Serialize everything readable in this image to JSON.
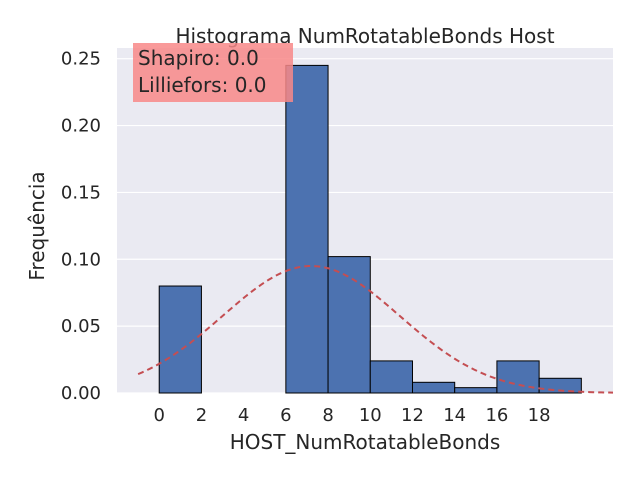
{
  "chart_data": {
    "type": "histogram",
    "title": "Histograma NumRotatableBonds Host",
    "xlabel": "HOST_NumRotatableBonds",
    "ylabel": "Frequência",
    "xlim": [
      -2,
      21.5
    ],
    "ylim": [
      0,
      0.258
    ],
    "xticks": [
      0,
      2,
      4,
      6,
      8,
      10,
      12,
      14,
      16,
      18
    ],
    "yticks": [
      0.0,
      0.05,
      0.1,
      0.15,
      0.2,
      0.25
    ],
    "ytick_labels": [
      "0.00",
      "0.05",
      "0.10",
      "0.15",
      "0.20",
      "0.25"
    ],
    "grid": true,
    "bars": [
      {
        "x0": 0,
        "x1": 2,
        "value": 0.08
      },
      {
        "x0": 2,
        "x1": 4,
        "value": 0.0
      },
      {
        "x0": 4,
        "x1": 6,
        "value": 0.0
      },
      {
        "x0": 6,
        "x1": 8,
        "value": 0.245
      },
      {
        "x0": 8,
        "x1": 10,
        "value": 0.102
      },
      {
        "x0": 10,
        "x1": 12,
        "value": 0.024
      },
      {
        "x0": 12,
        "x1": 14,
        "value": 0.008
      },
      {
        "x0": 14,
        "x1": 16,
        "value": 0.004
      },
      {
        "x0": 16,
        "x1": 18,
        "value": 0.024
      },
      {
        "x0": 18,
        "x1": 20,
        "value": 0.011
      }
    ],
    "normal_fit": {
      "mean": 7.2,
      "std": 4.2,
      "x_range": [
        -1,
        21.5
      ]
    },
    "annotation": {
      "lines": [
        "Shapiro: 0.0",
        "Lilliefors: 0.0"
      ],
      "position": "top-left"
    },
    "colors": {
      "bar": "#4c72b0",
      "bar_edge": "#000000",
      "fit_line": "#c44e52",
      "background": "#eaeaf2",
      "grid": "#ffffff",
      "annotation_box": "#f88888"
    }
  }
}
